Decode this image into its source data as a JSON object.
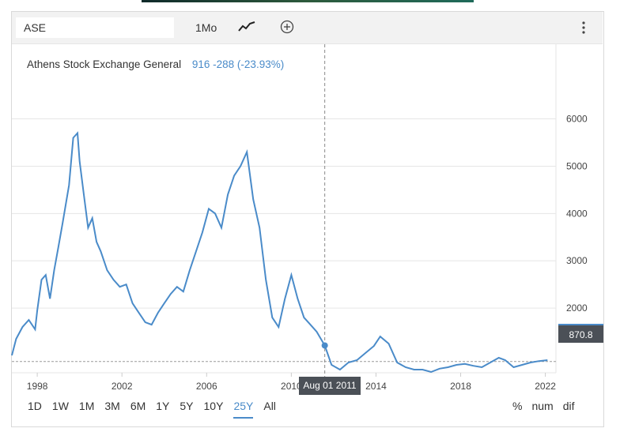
{
  "toolbar": {
    "symbol": "ASE",
    "period": "1Mo",
    "chart_type_icon": "line-chart-icon",
    "add_icon": "plus-circle-icon",
    "more_icon": "vertical-dots-icon"
  },
  "legend": {
    "name": "Athens Stock Exchange General",
    "value": "916  -288 (-23.93%)"
  },
  "crosshair": {
    "label": "Aug 01 2011"
  },
  "price_label": "870.8",
  "ranges": [
    "1D",
    "1W",
    "1M",
    "3M",
    "6M",
    "1Y",
    "5Y",
    "10Y",
    "25Y",
    "All"
  ],
  "active_range": "25Y",
  "options": [
    "%",
    "num",
    "dif"
  ],
  "colors": {
    "line": "#4a8bc9",
    "label_bg": "#4b5057",
    "grid": "#e6e6e6"
  },
  "chart_data": {
    "type": "line",
    "title": "Athens Stock Exchange General",
    "x_ticks": [
      "1998",
      "2002",
      "2006",
      "2010",
      "2014",
      "2018",
      "2022"
    ],
    "y_ticks": [
      2000,
      3000,
      4000,
      5000,
      6000
    ],
    "ylim": [
      600,
      6700
    ],
    "xlim": [
      1996.8,
      2022.5
    ],
    "grid": true,
    "reference_value": 870.8,
    "series": [
      {
        "x": [
          1996.8,
          1997.0,
          1997.3,
          1997.6,
          1997.9,
          1998.0,
          1998.2,
          1998.4,
          1998.6,
          1998.8,
          1999.0,
          1999.2,
          1999.5,
          1999.7,
          1999.9,
          2000.0,
          2000.2,
          2000.4,
          2000.6,
          2000.8,
          2001.0,
          2001.3,
          2001.6,
          2001.9,
          2002.2,
          2002.5,
          2002.8,
          2003.1,
          2003.4,
          2003.7,
          2004.0,
          2004.3,
          2004.6,
          2004.9,
          2005.2,
          2005.5,
          2005.8,
          2006.1,
          2006.4,
          2006.7,
          2007.0,
          2007.3,
          2007.6,
          2007.9,
          2008.2,
          2008.5,
          2008.8,
          2009.1,
          2009.4,
          2009.7,
          2010.0,
          2010.3,
          2010.6,
          2010.9,
          2011.2,
          2011.58,
          2011.9,
          2012.3,
          2012.7,
          2013.1,
          2013.5,
          2013.9,
          2014.2,
          2014.6,
          2015.0,
          2015.4,
          2015.8,
          2016.2,
          2016.6,
          2017.0,
          2017.4,
          2017.8,
          2018.2,
          2018.6,
          2019.0,
          2019.4,
          2019.8,
          2020.1,
          2020.5,
          2020.9,
          2021.3,
          2021.7,
          2022.1
        ],
        "y": [
          1000,
          1350,
          1600,
          1750,
          1550,
          1950,
          2600,
          2700,
          2200,
          2800,
          3300,
          3800,
          4600,
          5600,
          5700,
          5100,
          4400,
          3700,
          3900,
          3400,
          3200,
          2800,
          2600,
          2450,
          2500,
          2100,
          1900,
          1700,
          1650,
          1900,
          2100,
          2300,
          2450,
          2350,
          2800,
          3200,
          3600,
          4100,
          4000,
          3700,
          4400,
          4800,
          5000,
          5300,
          4300,
          3700,
          2600,
          1800,
          1600,
          2200,
          2700,
          2200,
          1800,
          1650,
          1500,
          1210,
          800,
          700,
          850,
          900,
          1050,
          1200,
          1400,
          1250,
          850,
          750,
          700,
          700,
          650,
          720,
          750,
          800,
          820,
          780,
          750,
          850,
          950,
          900,
          750,
          800,
          850,
          880,
          900
        ]
      }
    ]
  }
}
